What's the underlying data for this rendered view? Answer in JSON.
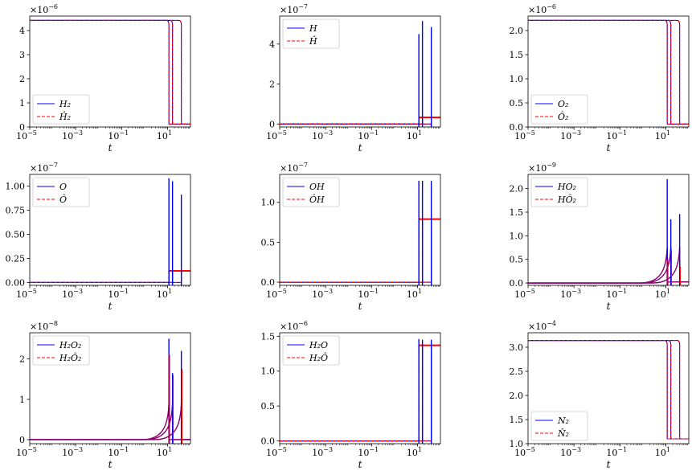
{
  "figure": {
    "colors": {
      "truth": "#0000ff",
      "pred": "#ff0000",
      "pred_overlap": "#8a0070"
    }
  },
  "chart_data": [
    {
      "type": "line",
      "xlabel": "t",
      "xscale": "log",
      "xlim": [
        1e-05,
        100
      ],
      "xticks": [
        "10",
        "10",
        "10",
        "10"
      ],
      "xtick_exps": [
        "−5",
        "−3",
        "−1",
        "1"
      ],
      "xtick_vals": [
        1e-05,
        0.001,
        0.1,
        10
      ],
      "ylim": [
        0,
        4.6
      ],
      "yticks": [
        "0",
        "1",
        "2",
        "3",
        "4"
      ],
      "ytick_vals": [
        0,
        1,
        2,
        3,
        4
      ],
      "yscale_label": "×10",
      "yscale_exp": "−6",
      "legend_loc": "lower-left",
      "legend": [
        "H₂",
        "Ĥ₂"
      ],
      "shape": "step_down",
      "init": 4.42,
      "final": 0.12,
      "drops": [
        11.5,
        16.5,
        40
      ],
      "spikes": []
    },
    {
      "type": "line",
      "xlabel": "t",
      "xscale": "log",
      "xlim": [
        1e-05,
        100
      ],
      "xticks": [
        "10",
        "10",
        "10",
        "10"
      ],
      "xtick_exps": [
        "−5",
        "−3",
        "−1",
        "1"
      ],
      "xtick_vals": [
        1e-05,
        0.001,
        0.1,
        10
      ],
      "ylim": [
        -0.15,
        5.4
      ],
      "yticks": [
        "0",
        "2",
        "4"
      ],
      "ytick_vals": [
        0,
        2,
        4
      ],
      "yscale_label": "×10",
      "yscale_exp": "−7",
      "legend_loc": "upper-left",
      "legend": [
        "H",
        "Ĥ"
      ],
      "shape": "step_up",
      "init": 0.0,
      "final": 0.33,
      "drops": [
        11.5,
        16.5,
        40
      ],
      "spikes": [
        [
          11.5,
          4.5
        ],
        [
          16.5,
          5.15
        ],
        [
          40,
          4.85
        ]
      ]
    },
    {
      "type": "line",
      "xlabel": "t",
      "xscale": "log",
      "xlim": [
        1e-05,
        100
      ],
      "xticks": [
        "10",
        "10",
        "10",
        "10"
      ],
      "xtick_exps": [
        "−5",
        "−3",
        "−1",
        "1"
      ],
      "xtick_vals": [
        1e-05,
        0.001,
        0.1,
        10
      ],
      "ylim": [
        0,
        2.3
      ],
      "yticks": [
        "0.0",
        "0.5",
        "1.0",
        "1.5",
        "2.0"
      ],
      "ytick_vals": [
        0,
        0.5,
        1.0,
        1.5,
        2.0
      ],
      "yscale_label": "×10",
      "yscale_exp": "−6",
      "legend_loc": "lower-left",
      "legend": [
        "O₂",
        "Ô₂"
      ],
      "shape": "step_down",
      "init": 2.21,
      "final": 0.06,
      "drops": [
        11.5,
        16.5,
        40
      ],
      "spikes": []
    },
    {
      "type": "line",
      "xlabel": "t",
      "xscale": "log",
      "xlim": [
        1e-05,
        100
      ],
      "xticks": [
        "10",
        "10",
        "10",
        "10"
      ],
      "xtick_exps": [
        "−5",
        "−3",
        "−1",
        "1"
      ],
      "xtick_vals": [
        1e-05,
        0.001,
        0.1,
        10
      ],
      "ylim": [
        -0.03,
        1.12
      ],
      "yticks": [
        "0.00",
        "0.25",
        "0.50",
        "0.75",
        "1.00"
      ],
      "ytick_vals": [
        0,
        0.25,
        0.5,
        0.75,
        1.0
      ],
      "yscale_label": "×10",
      "yscale_exp": "−7",
      "legend_loc": "upper-left",
      "legend": [
        "O",
        "Ô"
      ],
      "shape": "step_up",
      "init": 0.0,
      "final": 0.12,
      "drops": [
        11.5,
        16.5,
        40
      ],
      "spikes": [
        [
          11.5,
          1.08
        ],
        [
          16.5,
          1.05
        ],
        [
          40,
          0.91
        ]
      ]
    },
    {
      "type": "line",
      "xlabel": "t",
      "xscale": "log",
      "xlim": [
        1e-05,
        100
      ],
      "xticks": [
        "10",
        "10",
        "10",
        "10"
      ],
      "xtick_exps": [
        "−5",
        "−3",
        "−1",
        "1"
      ],
      "xtick_vals": [
        1e-05,
        0.001,
        0.1,
        10
      ],
      "ylim": [
        -0.04,
        1.35
      ],
      "yticks": [
        "0.0",
        "0.5",
        "1.0"
      ],
      "ytick_vals": [
        0,
        0.5,
        1.0
      ],
      "yscale_label": "×10",
      "yscale_exp": "−7",
      "legend_loc": "upper-left",
      "legend": [
        "OH",
        "ÔH"
      ],
      "shape": "step_up",
      "init": 0.0,
      "final": 0.79,
      "drops": [
        11.5,
        16.5,
        40
      ],
      "spikes": [
        [
          11.5,
          1.27
        ],
        [
          16.5,
          1.27
        ],
        [
          40,
          1.27
        ]
      ]
    },
    {
      "type": "line",
      "xlabel": "t",
      "xscale": "log",
      "xlim": [
        1e-05,
        100
      ],
      "xticks": [
        "10",
        "10",
        "10",
        "10"
      ],
      "xtick_exps": [
        "−5",
        "−3",
        "−1",
        "1"
      ],
      "xtick_vals": [
        1e-05,
        0.001,
        0.1,
        10
      ],
      "ylim": [
        -0.05,
        2.3
      ],
      "yticks": [
        "0.0",
        "0.5",
        "1.0",
        "1.5",
        "2.0"
      ],
      "ytick_vals": [
        0,
        0.5,
        1.0,
        1.5,
        2.0
      ],
      "yscale_label": "×10",
      "yscale_exp": "−9",
      "legend_loc": "upper-left",
      "legend": [
        "HO₂",
        "HÔ₂"
      ],
      "shape": "rise_spike",
      "init": 0.0,
      "final": 0.02,
      "drops": [
        11.5,
        16.5,
        40
      ],
      "spikes": [
        [
          11.5,
          2.2
        ],
        [
          16.5,
          1.35
        ],
        [
          40,
          1.46
        ]
      ],
      "pred_spikes": [
        [
          11.5,
          0.5
        ],
        [
          16.5,
          0.7
        ],
        [
          40,
          0.35
        ]
      ]
    },
    {
      "type": "line",
      "xlabel": "t",
      "xscale": "log",
      "xlim": [
        1e-05,
        100
      ],
      "xticks": [
        "10",
        "10",
        "10",
        "10"
      ],
      "xtick_exps": [
        "−5",
        "−3",
        "−1",
        "1"
      ],
      "xtick_vals": [
        1e-05,
        0.001,
        0.1,
        10
      ],
      "ylim": [
        -0.1,
        2.65
      ],
      "yticks": [
        "0",
        "1",
        "2"
      ],
      "ytick_vals": [
        0,
        1,
        2
      ],
      "yscale_label": "×10",
      "yscale_exp": "−8",
      "legend_loc": "upper-left",
      "legend": [
        "H₂O₂",
        "H₂Ô₂"
      ],
      "shape": "rise_spike",
      "init": 0.0,
      "final": 0.0,
      "drops": [
        11.5,
        16.5,
        40
      ],
      "spikes": [
        [
          11.5,
          2.5
        ],
        [
          16.5,
          1.65
        ],
        [
          40,
          2.2
        ]
      ],
      "pred_spikes": [
        [
          11.5,
          2.1
        ],
        [
          16.5,
          1.6
        ],
        [
          40,
          1.75
        ]
      ]
    },
    {
      "type": "line",
      "xlabel": "t",
      "xscale": "log",
      "xlim": [
        1e-05,
        100
      ],
      "xticks": [
        "10",
        "10",
        "10",
        "10"
      ],
      "xtick_exps": [
        "−5",
        "−3",
        "−1",
        "1"
      ],
      "xtick_vals": [
        1e-05,
        0.001,
        0.1,
        10
      ],
      "ylim": [
        -0.04,
        1.55
      ],
      "yticks": [
        "0.0",
        "0.5",
        "1.0",
        "1.5"
      ],
      "ytick_vals": [
        0,
        0.5,
        1.0,
        1.5
      ],
      "yscale_label": "×10",
      "yscale_exp": "−6",
      "legend_loc": "upper-left",
      "legend": [
        "H₂O",
        "H₂Ô"
      ],
      "shape": "step_up",
      "init": 0.0,
      "final": 1.37,
      "drops": [
        11.5,
        16.5,
        40
      ],
      "spikes": [
        [
          11.5,
          1.46
        ],
        [
          16.5,
          1.45
        ],
        [
          40,
          1.45
        ]
      ]
    },
    {
      "type": "line",
      "xlabel": "t",
      "xscale": "log",
      "xlim": [
        1e-05,
        100
      ],
      "xticks": [
        "10",
        "10",
        "10",
        "10"
      ],
      "xtick_exps": [
        "−5",
        "−3",
        "−1",
        "1"
      ],
      "xtick_vals": [
        1e-05,
        0.001,
        0.1,
        10
      ],
      "ylim": [
        1.0,
        3.3
      ],
      "yticks": [
        "1.0",
        "1.5",
        "2.0",
        "2.5",
        "3.0"
      ],
      "ytick_vals": [
        1.0,
        1.5,
        2.0,
        2.5,
        3.0
      ],
      "yscale_label": "×10",
      "yscale_exp": "−4",
      "legend_loc": "lower-left",
      "legend": [
        "N₂",
        "N̂₂"
      ],
      "shape": "step_down",
      "init": 3.14,
      "final": 1.1,
      "drops": [
        11.5,
        16.5,
        40
      ],
      "spikes": []
    }
  ]
}
